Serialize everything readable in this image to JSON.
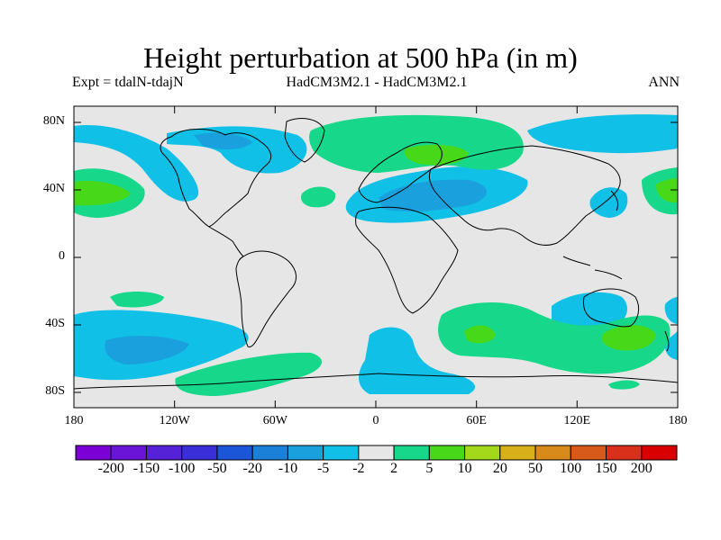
{
  "title": "Height perturbation at 500 hPa (in m)",
  "subtitle_left": "Expt = tdalN-tdajN",
  "subtitle_center": "HadCM3M2.1 - HadCM3M2.1",
  "subtitle_right": "ANN",
  "lat_ticks": [
    "80N",
    "40N",
    "0",
    "40S",
    "80S"
  ],
  "lon_ticks": [
    "180",
    "120W",
    "60W",
    "0",
    "60E",
    "120E",
    "180"
  ],
  "colorbar": {
    "labels": [
      "-200",
      "-150",
      "-100",
      "-50",
      "-20",
      "-10",
      "-5",
      "-2",
      "2",
      "5",
      "10",
      "20",
      "50",
      "100",
      "150",
      "200"
    ],
    "colors": [
      "#7a00d6",
      "#6a14d8",
      "#5522d8",
      "#3a2ed8",
      "#1b55d8",
      "#1a80d8",
      "#1ba0de",
      "#10c0e6",
      "#e6e6e6",
      "#17d88a",
      "#48d81a",
      "#a4d81a",
      "#d8b01a",
      "#d88a1a",
      "#d85a1a",
      "#d8301a",
      "#d80000"
    ]
  },
  "colors": {
    "neutral": "#e6e6e6",
    "neg_weak": "#10c0e6",
    "neg_mod": "#1ba0de",
    "pos_weak": "#17d88a",
    "pos_mod": "#48d81a"
  }
}
